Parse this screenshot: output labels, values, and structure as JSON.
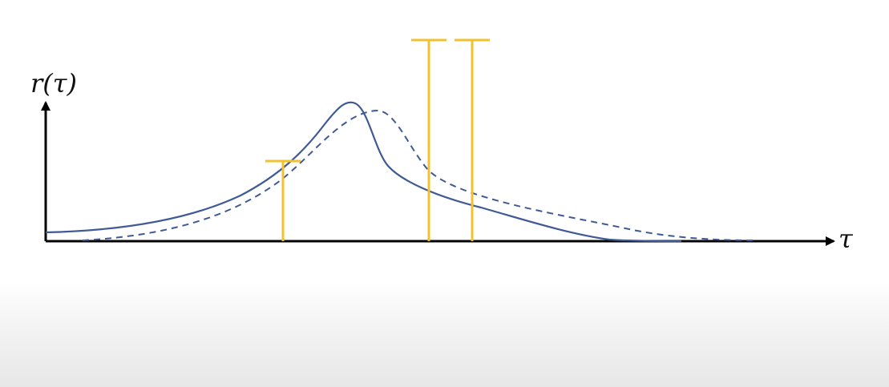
{
  "diagram": {
    "y_axis_label": "r(τ)",
    "x_axis_label": "τ",
    "colors": {
      "axis": "#000000",
      "solid_curve": "#3f5a94",
      "dashed_curve": "#3f5a94",
      "error_bars": "#f2c12e"
    },
    "curves": [
      {
        "style": "solid"
      },
      {
        "style": "dashed"
      }
    ],
    "error_bars": [
      {
        "count": 1,
        "position": "left"
      },
      {
        "count": 2,
        "position": "right"
      }
    ]
  }
}
